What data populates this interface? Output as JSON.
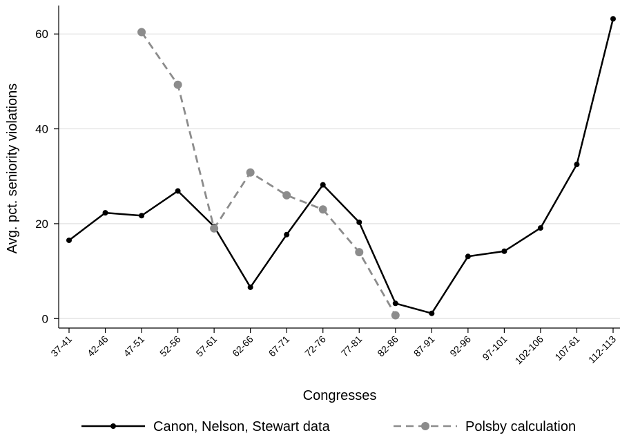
{
  "chart_data": {
    "type": "line",
    "title": "",
    "xlabel": "Congresses",
    "ylabel": "Avg. pct. seniority violations",
    "categories": [
      "37-41",
      "42-46",
      "47-51",
      "52-56",
      "57-61",
      "62-66",
      "67-71",
      "72-76",
      "77-81",
      "82-86",
      "87-91",
      "92-96",
      "97-101",
      "102-106",
      "107-61",
      "112-113"
    ],
    "yticks": [
      0,
      20,
      40,
      60
    ],
    "ylim": [
      -2,
      66
    ],
    "grid": true,
    "legend_position": "bottom",
    "series": [
      {
        "name": "Canon, Nelson, Stewart data",
        "style": "solid",
        "color": "#000000",
        "values": [
          16.5,
          22.3,
          21.7,
          26.9,
          19.4,
          6.6,
          17.7,
          28.2,
          20.3,
          3.2,
          1.1,
          13.1,
          14.2,
          19.1,
          32.5,
          63.2
        ]
      },
      {
        "name": "Polsby calculation",
        "style": "dashed",
        "color": "#8c8c8c",
        "values": [
          null,
          null,
          60.4,
          49.3,
          19.0,
          30.8,
          26.0,
          23.0,
          14.0,
          0.7,
          null,
          null,
          null,
          null,
          null,
          null
        ]
      }
    ]
  }
}
